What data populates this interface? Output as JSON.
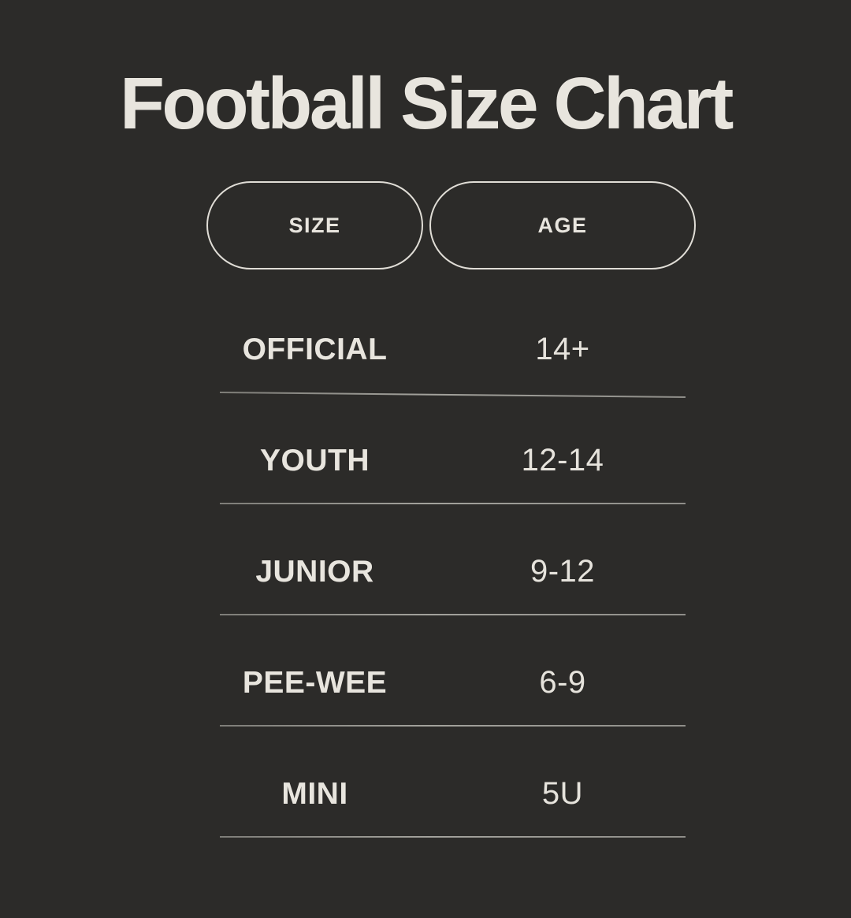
{
  "title": "Football Size Chart",
  "colors": {
    "background": "#2c2b29",
    "text": "#e8e5de",
    "pill_border": "#e0ddd6",
    "divider": "#8f8e89"
  },
  "table": {
    "headers": [
      {
        "label": "SIZE"
      },
      {
        "label": "AGE"
      }
    ],
    "rows": [
      {
        "size": "OFFICIAL",
        "age": "14+"
      },
      {
        "size": "YOUTH",
        "age": "12-14"
      },
      {
        "size": "JUNIOR",
        "age": "9-12"
      },
      {
        "size": "PEE-WEE",
        "age": "6-9"
      },
      {
        "size": "MINI",
        "age": "5U"
      }
    ]
  },
  "chart_data": {
    "type": "table",
    "title": "Football Size Chart",
    "columns": [
      "SIZE",
      "AGE"
    ],
    "rows": [
      [
        "OFFICIAL",
        "14+"
      ],
      [
        "YOUTH",
        "12-14"
      ],
      [
        "JUNIOR",
        "9-12"
      ],
      [
        "PEE-WEE",
        "6-9"
      ],
      [
        "MINI",
        "5U"
      ]
    ],
    "layout": {
      "theme": "dark",
      "header_style": "outlined-pill",
      "row_dividers": true,
      "first_divider_tilt_deg": 0.58
    }
  }
}
